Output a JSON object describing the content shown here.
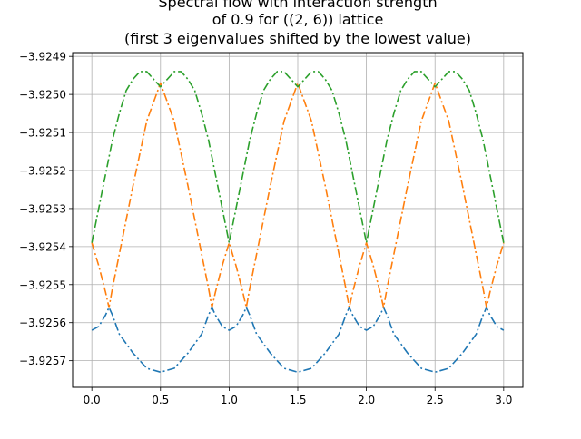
{
  "window": {
    "background": "#ffffff"
  },
  "chart_data": {
    "type": "line",
    "title_lines": [
      "Spectral flow with interaction strength",
      "of 0.9 for ((2, 6)) lattice",
      "(first 3 eigenvalues shifted by the lowest value)"
    ],
    "xlabel": "",
    "ylabel": "",
    "xlim": [
      -0.14,
      3.14
    ],
    "ylim": [
      -3.92577,
      -3.92489
    ],
    "xticks": [
      0.0,
      0.5,
      1.0,
      1.5,
      2.0,
      2.5,
      3.0
    ],
    "xtick_labels": [
      "0.0",
      "0.5",
      "1.0",
      "1.5",
      "2.0",
      "2.5",
      "3.0"
    ],
    "yticks": [
      -3.9257,
      -3.9256,
      -3.9255,
      -3.9254,
      -3.9253,
      -3.9252,
      -3.9251,
      -3.925,
      -3.9249
    ],
    "ytick_labels": [
      "−3.9257",
      "−3.9256",
      "−3.9255",
      "−3.9254",
      "−3.9253",
      "−3.9252",
      "−3.9251",
      "−3.9250",
      "−3.9249"
    ],
    "grid": true,
    "line_style": "dash-dot",
    "series": [
      {
        "color": "#1f77b4",
        "x": [
          0.0,
          0.05,
          0.1,
          0.125,
          0.15,
          0.2,
          0.3,
          0.4,
          0.5,
          0.6,
          0.7,
          0.8,
          0.85,
          0.875,
          0.9,
          0.95,
          1.0,
          1.05,
          1.1,
          1.125,
          1.15,
          1.2,
          1.3,
          1.4,
          1.5,
          1.6,
          1.7,
          1.8,
          1.85,
          1.875,
          1.9,
          1.95,
          2.0,
          2.05,
          2.1,
          2.125,
          2.15,
          2.2,
          2.3,
          2.4,
          2.5,
          2.6,
          2.7,
          2.8,
          2.85,
          2.875,
          2.9,
          2.95,
          3.0
        ],
        "y": [
          -3.92562,
          -3.92561,
          -3.92558,
          -3.92556,
          -3.92558,
          -3.92563,
          -3.92568,
          -3.92572,
          -3.92573,
          -3.92572,
          -3.92568,
          -3.92563,
          -3.92558,
          -3.92556,
          -3.92558,
          -3.92561,
          -3.92562,
          -3.92561,
          -3.92558,
          -3.92556,
          -3.92558,
          -3.92563,
          -3.92568,
          -3.92572,
          -3.92573,
          -3.92572,
          -3.92568,
          -3.92563,
          -3.92558,
          -3.92556,
          -3.92558,
          -3.92561,
          -3.92562,
          -3.92561,
          -3.92558,
          -3.92556,
          -3.92558,
          -3.92563,
          -3.92568,
          -3.92572,
          -3.92573,
          -3.92572,
          -3.92568,
          -3.92563,
          -3.92558,
          -3.92556,
          -3.92558,
          -3.92561,
          -3.92562
        ]
      },
      {
        "color": "#ff7f0e",
        "x": [
          0.0,
          0.05,
          0.1,
          0.125,
          0.15,
          0.2,
          0.3,
          0.4,
          0.5,
          0.6,
          0.7,
          0.8,
          0.85,
          0.875,
          0.9,
          0.95,
          1.0,
          1.05,
          1.1,
          1.125,
          1.15,
          1.2,
          1.3,
          1.4,
          1.5,
          1.6,
          1.7,
          1.8,
          1.85,
          1.875,
          1.9,
          1.95,
          2.0,
          2.05,
          2.1,
          2.125,
          2.15,
          2.2,
          2.3,
          2.4,
          2.5,
          2.6,
          2.7,
          2.8,
          2.85,
          2.875,
          2.9,
          2.95,
          3.0
        ],
        "y": [
          -3.92539,
          -3.92545,
          -3.92552,
          -3.92556,
          -3.92551,
          -3.92542,
          -3.92524,
          -3.92507,
          -3.92497,
          -3.92507,
          -3.92524,
          -3.92542,
          -3.92551,
          -3.92556,
          -3.92552,
          -3.92545,
          -3.92539,
          -3.92545,
          -3.92552,
          -3.92556,
          -3.92551,
          -3.92542,
          -3.92524,
          -3.92507,
          -3.92497,
          -3.92507,
          -3.92524,
          -3.92542,
          -3.92551,
          -3.92556,
          -3.92552,
          -3.92545,
          -3.92539,
          -3.92545,
          -3.92552,
          -3.92556,
          -3.92551,
          -3.92542,
          -3.92524,
          -3.92507,
          -3.92497,
          -3.92507,
          -3.92524,
          -3.92542,
          -3.92551,
          -3.92556,
          -3.92552,
          -3.92545,
          -3.92539
        ]
      },
      {
        "color": "#2ca02c",
        "x": [
          0.0,
          0.05,
          0.1,
          0.15,
          0.2,
          0.25,
          0.3,
          0.35,
          0.4,
          0.45,
          0.5,
          0.55,
          0.6,
          0.65,
          0.7,
          0.75,
          0.8,
          0.85,
          0.9,
          0.95,
          1.0,
          1.05,
          1.1,
          1.15,
          1.2,
          1.25,
          1.3,
          1.35,
          1.4,
          1.45,
          1.5,
          1.55,
          1.6,
          1.65,
          1.7,
          1.75,
          1.8,
          1.85,
          1.9,
          1.95,
          2.0,
          2.05,
          2.1,
          2.15,
          2.2,
          2.25,
          2.3,
          2.35,
          2.4,
          2.45,
          2.5,
          2.55,
          2.6,
          2.65,
          2.7,
          2.75,
          2.8,
          2.85,
          2.9,
          2.95,
          3.0
        ],
        "y": [
          -3.92539,
          -3.9253,
          -3.92521,
          -3.92512,
          -3.92505,
          -3.92499,
          -3.92496,
          -3.92494,
          -3.92494,
          -3.92496,
          -3.92498,
          -3.92496,
          -3.92494,
          -3.92494,
          -3.92496,
          -3.92499,
          -3.92505,
          -3.92512,
          -3.92521,
          -3.9253,
          -3.92539,
          -3.9253,
          -3.92521,
          -3.92512,
          -3.92505,
          -3.92499,
          -3.92496,
          -3.92494,
          -3.92494,
          -3.92496,
          -3.92498,
          -3.92496,
          -3.92494,
          -3.92494,
          -3.92496,
          -3.92499,
          -3.92505,
          -3.92512,
          -3.92521,
          -3.9253,
          -3.92539,
          -3.9253,
          -3.92521,
          -3.92512,
          -3.92505,
          -3.92499,
          -3.92496,
          -3.92494,
          -3.92494,
          -3.92496,
          -3.92498,
          -3.92496,
          -3.92494,
          -3.92494,
          -3.92496,
          -3.92499,
          -3.92505,
          -3.92512,
          -3.92521,
          -3.9253,
          -3.92539
        ]
      }
    ]
  }
}
